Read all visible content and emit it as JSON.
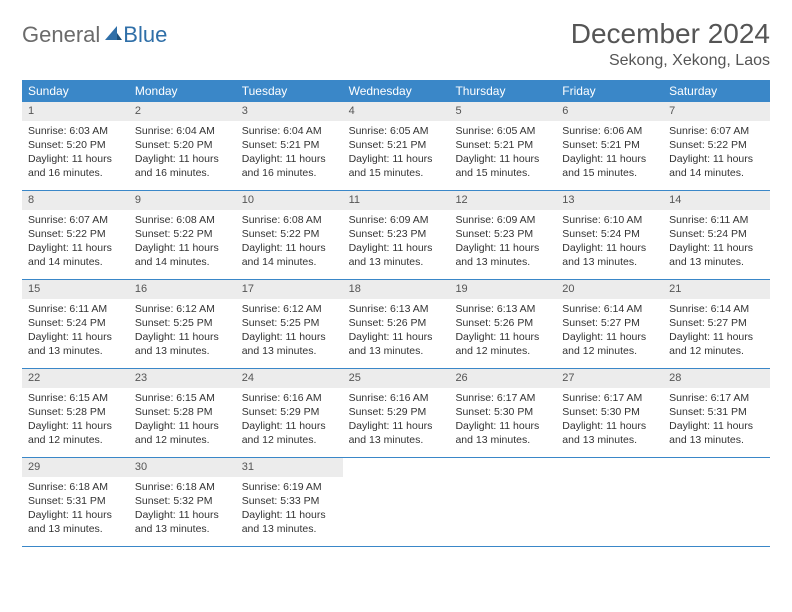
{
  "logo": {
    "text1": "General",
    "text2": "Blue"
  },
  "title": "December 2024",
  "location": "Sekong, Xekong, Laos",
  "colors": {
    "header_bg": "#3a87c8",
    "header_text": "#ffffff",
    "strip_bg": "#ececec",
    "row_border": "#3a87c8",
    "logo_gray": "#6b6b6b",
    "logo_blue": "#2f6fa8",
    "title_color": "#555555"
  },
  "day_names": [
    "Sunday",
    "Monday",
    "Tuesday",
    "Wednesday",
    "Thursday",
    "Friday",
    "Saturday"
  ],
  "weeks": [
    [
      {
        "n": "1",
        "sunrise": "Sunrise: 6:03 AM",
        "sunset": "Sunset: 5:20 PM",
        "daylight": "Daylight: 11 hours and 16 minutes."
      },
      {
        "n": "2",
        "sunrise": "Sunrise: 6:04 AM",
        "sunset": "Sunset: 5:20 PM",
        "daylight": "Daylight: 11 hours and 16 minutes."
      },
      {
        "n": "3",
        "sunrise": "Sunrise: 6:04 AM",
        "sunset": "Sunset: 5:21 PM",
        "daylight": "Daylight: 11 hours and 16 minutes."
      },
      {
        "n": "4",
        "sunrise": "Sunrise: 6:05 AM",
        "sunset": "Sunset: 5:21 PM",
        "daylight": "Daylight: 11 hours and 15 minutes."
      },
      {
        "n": "5",
        "sunrise": "Sunrise: 6:05 AM",
        "sunset": "Sunset: 5:21 PM",
        "daylight": "Daylight: 11 hours and 15 minutes."
      },
      {
        "n": "6",
        "sunrise": "Sunrise: 6:06 AM",
        "sunset": "Sunset: 5:21 PM",
        "daylight": "Daylight: 11 hours and 15 minutes."
      },
      {
        "n": "7",
        "sunrise": "Sunrise: 6:07 AM",
        "sunset": "Sunset: 5:22 PM",
        "daylight": "Daylight: 11 hours and 14 minutes."
      }
    ],
    [
      {
        "n": "8",
        "sunrise": "Sunrise: 6:07 AM",
        "sunset": "Sunset: 5:22 PM",
        "daylight": "Daylight: 11 hours and 14 minutes."
      },
      {
        "n": "9",
        "sunrise": "Sunrise: 6:08 AM",
        "sunset": "Sunset: 5:22 PM",
        "daylight": "Daylight: 11 hours and 14 minutes."
      },
      {
        "n": "10",
        "sunrise": "Sunrise: 6:08 AM",
        "sunset": "Sunset: 5:22 PM",
        "daylight": "Daylight: 11 hours and 14 minutes."
      },
      {
        "n": "11",
        "sunrise": "Sunrise: 6:09 AM",
        "sunset": "Sunset: 5:23 PM",
        "daylight": "Daylight: 11 hours and 13 minutes."
      },
      {
        "n": "12",
        "sunrise": "Sunrise: 6:09 AM",
        "sunset": "Sunset: 5:23 PM",
        "daylight": "Daylight: 11 hours and 13 minutes."
      },
      {
        "n": "13",
        "sunrise": "Sunrise: 6:10 AM",
        "sunset": "Sunset: 5:24 PM",
        "daylight": "Daylight: 11 hours and 13 minutes."
      },
      {
        "n": "14",
        "sunrise": "Sunrise: 6:11 AM",
        "sunset": "Sunset: 5:24 PM",
        "daylight": "Daylight: 11 hours and 13 minutes."
      }
    ],
    [
      {
        "n": "15",
        "sunrise": "Sunrise: 6:11 AM",
        "sunset": "Sunset: 5:24 PM",
        "daylight": "Daylight: 11 hours and 13 minutes."
      },
      {
        "n": "16",
        "sunrise": "Sunrise: 6:12 AM",
        "sunset": "Sunset: 5:25 PM",
        "daylight": "Daylight: 11 hours and 13 minutes."
      },
      {
        "n": "17",
        "sunrise": "Sunrise: 6:12 AM",
        "sunset": "Sunset: 5:25 PM",
        "daylight": "Daylight: 11 hours and 13 minutes."
      },
      {
        "n": "18",
        "sunrise": "Sunrise: 6:13 AM",
        "sunset": "Sunset: 5:26 PM",
        "daylight": "Daylight: 11 hours and 13 minutes."
      },
      {
        "n": "19",
        "sunrise": "Sunrise: 6:13 AM",
        "sunset": "Sunset: 5:26 PM",
        "daylight": "Daylight: 11 hours and 12 minutes."
      },
      {
        "n": "20",
        "sunrise": "Sunrise: 6:14 AM",
        "sunset": "Sunset: 5:27 PM",
        "daylight": "Daylight: 11 hours and 12 minutes."
      },
      {
        "n": "21",
        "sunrise": "Sunrise: 6:14 AM",
        "sunset": "Sunset: 5:27 PM",
        "daylight": "Daylight: 11 hours and 12 minutes."
      }
    ],
    [
      {
        "n": "22",
        "sunrise": "Sunrise: 6:15 AM",
        "sunset": "Sunset: 5:28 PM",
        "daylight": "Daylight: 11 hours and 12 minutes."
      },
      {
        "n": "23",
        "sunrise": "Sunrise: 6:15 AM",
        "sunset": "Sunset: 5:28 PM",
        "daylight": "Daylight: 11 hours and 12 minutes."
      },
      {
        "n": "24",
        "sunrise": "Sunrise: 6:16 AM",
        "sunset": "Sunset: 5:29 PM",
        "daylight": "Daylight: 11 hours and 12 minutes."
      },
      {
        "n": "25",
        "sunrise": "Sunrise: 6:16 AM",
        "sunset": "Sunset: 5:29 PM",
        "daylight": "Daylight: 11 hours and 13 minutes."
      },
      {
        "n": "26",
        "sunrise": "Sunrise: 6:17 AM",
        "sunset": "Sunset: 5:30 PM",
        "daylight": "Daylight: 11 hours and 13 minutes."
      },
      {
        "n": "27",
        "sunrise": "Sunrise: 6:17 AM",
        "sunset": "Sunset: 5:30 PM",
        "daylight": "Daylight: 11 hours and 13 minutes."
      },
      {
        "n": "28",
        "sunrise": "Sunrise: 6:17 AM",
        "sunset": "Sunset: 5:31 PM",
        "daylight": "Daylight: 11 hours and 13 minutes."
      }
    ],
    [
      {
        "n": "29",
        "sunrise": "Sunrise: 6:18 AM",
        "sunset": "Sunset: 5:31 PM",
        "daylight": "Daylight: 11 hours and 13 minutes."
      },
      {
        "n": "30",
        "sunrise": "Sunrise: 6:18 AM",
        "sunset": "Sunset: 5:32 PM",
        "daylight": "Daylight: 11 hours and 13 minutes."
      },
      {
        "n": "31",
        "sunrise": "Sunrise: 6:19 AM",
        "sunset": "Sunset: 5:33 PM",
        "daylight": "Daylight: 11 hours and 13 minutes."
      },
      null,
      null,
      null,
      null
    ]
  ]
}
